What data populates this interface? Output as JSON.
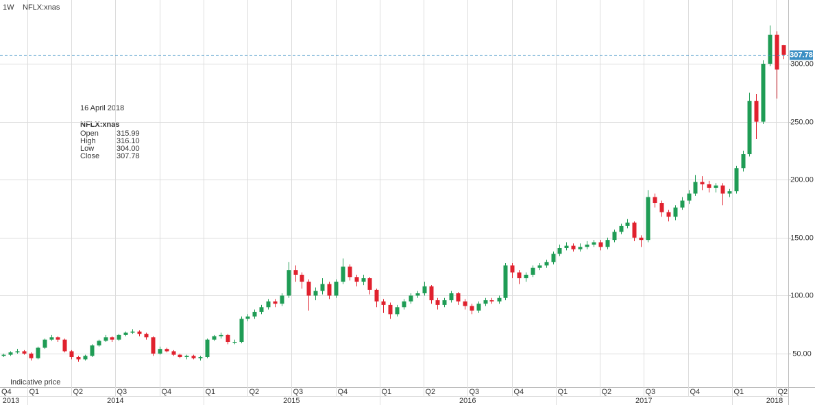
{
  "chart_data": {
    "type": "candlestick",
    "interval": "1W",
    "symbol": "NFLX:xnas",
    "note": "Indicative price",
    "up_color": "#1f9c55",
    "down_color": "#e0212e",
    "last_color": "#3b8fc4",
    "grid": true,
    "ylim": [
      21,
      355
    ],
    "yticks": [
      {
        "value": 50,
        "label": "50.00"
      },
      {
        "value": 100,
        "label": "100.00"
      },
      {
        "value": 150,
        "label": "150.00"
      },
      {
        "value": 200,
        "label": "200.00"
      },
      {
        "value": 250,
        "label": "250.00"
      },
      {
        "value": 300,
        "label": "300.00"
      }
    ],
    "xlim": [
      2013.845,
      2018.32
    ],
    "xticks": [
      {
        "value": 2013.75,
        "label": "Q4"
      },
      {
        "value": 2014,
        "label": "Q1"
      },
      {
        "value": 2014.25,
        "label": "Q2"
      },
      {
        "value": 2014.5,
        "label": "Q3"
      },
      {
        "value": 2014.75,
        "label": "Q4"
      },
      {
        "value": 2015,
        "label": "Q1"
      },
      {
        "value": 2015.25,
        "label": "Q2"
      },
      {
        "value": 2015.5,
        "label": "Q3"
      },
      {
        "value": 2015.75,
        "label": "Q4"
      },
      {
        "value": 2016,
        "label": "Q1"
      },
      {
        "value": 2016.25,
        "label": "Q2"
      },
      {
        "value": 2016.5,
        "label": "Q3"
      },
      {
        "value": 2016.75,
        "label": "Q4"
      },
      {
        "value": 2017,
        "label": "Q1"
      },
      {
        "value": 2017.25,
        "label": "Q2"
      },
      {
        "value": 2017.5,
        "label": "Q3"
      },
      {
        "value": 2017.75,
        "label": "Q4"
      },
      {
        "value": 2018,
        "label": "Q1"
      },
      {
        "value": 2018.25,
        "label": "Q2"
      }
    ],
    "year_ticks": [
      2013,
      2014,
      2015,
      2016,
      2017,
      2018
    ],
    "tooltip": {
      "date": "16 April 2018",
      "symbol": "NFLX:xnas",
      "rows": [
        [
          "Open",
          "315.99"
        ],
        [
          "High",
          "316.10"
        ],
        [
          "Low",
          "304.00"
        ],
        [
          "Close",
          "307.78"
        ]
      ]
    },
    "x": [
      2013.865,
      2013.904,
      2013.942,
      2013.981,
      2014.019,
      2014.058,
      2014.096,
      2014.135,
      2014.173,
      2014.212,
      2014.25,
      2014.289,
      2014.327,
      2014.366,
      2014.404,
      2014.443,
      2014.481,
      2014.52,
      2014.558,
      2014.597,
      2014.635,
      2014.674,
      2014.712,
      2014.751,
      2014.789,
      2014.828,
      2014.866,
      2014.905,
      2014.943,
      2014.982,
      2015.02,
      2015.059,
      2015.097,
      2015.136,
      2015.174,
      2015.213,
      2015.251,
      2015.29,
      2015.328,
      2015.367,
      2015.405,
      2015.444,
      2015.482,
      2015.521,
      2015.559,
      2015.598,
      2015.636,
      2015.675,
      2015.713,
      2015.752,
      2015.79,
      2015.829,
      2015.867,
      2015.906,
      2015.944,
      2015.983,
      2016.021,
      2016.06,
      2016.098,
      2016.137,
      2016.175,
      2016.214,
      2016.252,
      2016.291,
      2016.329,
      2016.368,
      2016.406,
      2016.445,
      2016.483,
      2016.522,
      2016.56,
      2016.599,
      2016.637,
      2016.676,
      2016.714,
      2016.753,
      2016.791,
      2016.83,
      2016.868,
      2016.907,
      2016.945,
      2016.984,
      2017.022,
      2017.061,
      2017.099,
      2017.138,
      2017.176,
      2017.215,
      2017.253,
      2017.292,
      2017.33,
      2017.369,
      2017.407,
      2017.446,
      2017.484,
      2017.523,
      2017.561,
      2017.6,
      2017.638,
      2017.677,
      2017.715,
      2017.754,
      2017.792,
      2017.831,
      2017.869,
      2017.908,
      2017.946,
      2017.985,
      2018.023,
      2018.062,
      2018.1,
      2018.139,
      2018.177,
      2018.216,
      2018.254,
      2018.293
    ],
    "open": [
      48,
      49,
      51,
      52,
      50,
      46,
      55,
      62,
      64,
      62,
      52,
      47,
      45,
      48,
      57,
      61,
      64,
      62,
      66,
      68,
      69,
      67,
      64,
      50,
      54,
      52,
      49,
      47,
      48,
      46,
      47,
      62,
      65,
      66,
      60,
      60,
      80,
      82,
      86,
      90,
      95,
      93,
      100,
      122,
      118,
      112,
      100,
      104,
      110,
      100,
      112,
      125,
      116,
      112,
      115,
      105,
      95,
      92,
      84,
      90,
      95,
      100,
      102,
      108,
      96,
      92,
      96,
      102,
      95,
      91,
      87,
      93,
      96,
      95,
      98,
      126,
      120,
      115,
      118,
      124,
      126,
      129,
      136,
      141,
      143,
      140,
      142,
      144,
      146,
      142,
      148,
      155,
      160,
      163,
      150,
      148,
      185,
      180,
      172,
      168,
      176,
      182,
      188,
      198,
      196,
      193,
      195,
      188,
      190,
      210,
      222,
      268,
      250,
      300,
      325,
      315.99
    ],
    "high": [
      50,
      52,
      54,
      53,
      51,
      56,
      63,
      66,
      65,
      63,
      53,
      48,
      49,
      58,
      62,
      66,
      65,
      67,
      69,
      71,
      70,
      68,
      65,
      56,
      55,
      53,
      50,
      49,
      49,
      48,
      63,
      66,
      68,
      67,
      62,
      82,
      84,
      88,
      92,
      97,
      97,
      102,
      129,
      126,
      120,
      114,
      107,
      115,
      112,
      114,
      132,
      127,
      118,
      118,
      116,
      106,
      97,
      94,
      92,
      97,
      102,
      104,
      112,
      109,
      98,
      98,
      104,
      103,
      97,
      93,
      95,
      98,
      98,
      100,
      128,
      128,
      122,
      120,
      126,
      128,
      131,
      138,
      144,
      146,
      145,
      145,
      147,
      148,
      148,
      150,
      157,
      162,
      166,
      164,
      152,
      191,
      188,
      182,
      174,
      178,
      185,
      191,
      204,
      203,
      199,
      197,
      197,
      192,
      212,
      225,
      275,
      274,
      303,
      333,
      328,
      316.1
    ],
    "low": [
      47,
      48,
      50,
      49,
      44,
      45,
      54,
      61,
      60,
      51,
      45,
      43,
      44,
      47,
      56,
      60,
      60,
      61,
      65,
      67,
      65,
      62,
      48,
      49,
      51,
      48,
      46,
      45,
      45,
      44,
      46,
      61,
      63,
      58,
      58,
      59,
      78,
      80,
      84,
      88,
      90,
      91,
      98,
      112,
      106,
      87,
      96,
      101,
      97,
      98,
      110,
      113,
      108,
      109,
      101,
      90,
      85,
      80,
      82,
      88,
      93,
      98,
      100,
      93,
      88,
      90,
      94,
      92,
      88,
      84,
      85,
      91,
      93,
      93,
      96,
      115,
      110,
      112,
      116,
      122,
      124,
      127,
      134,
      139,
      138,
      138,
      140,
      142,
      139,
      140,
      146,
      153,
      158,
      147,
      142,
      146,
      176,
      168,
      164,
      165,
      174,
      179,
      186,
      191,
      189,
      189,
      178,
      185,
      188,
      207,
      220,
      235,
      248,
      298,
      270,
      304
    ],
    "close": [
      49,
      51,
      52,
      50,
      46,
      55,
      62,
      64,
      62,
      52,
      47,
      45,
      48,
      57,
      61,
      64,
      62,
      66,
      68,
      69,
      67,
      64,
      50,
      54,
      52,
      49,
      47,
      48,
      46,
      47,
      62,
      65,
      66,
      60,
      60,
      80,
      82,
      86,
      90,
      95,
      93,
      100,
      122,
      118,
      112,
      100,
      104,
      110,
      100,
      112,
      125,
      116,
      112,
      115,
      105,
      95,
      92,
      84,
      90,
      95,
      100,
      102,
      108,
      96,
      92,
      96,
      102,
      95,
      91,
      87,
      93,
      96,
      95,
      98,
      126,
      120,
      115,
      118,
      124,
      126,
      129,
      136,
      141,
      143,
      140,
      142,
      144,
      146,
      142,
      148,
      155,
      160,
      163,
      150,
      148,
      185,
      180,
      172,
      168,
      176,
      182,
      188,
      198,
      196,
      193,
      195,
      188,
      190,
      210,
      222,
      268,
      250,
      300,
      325,
      295,
      307.78
    ]
  }
}
